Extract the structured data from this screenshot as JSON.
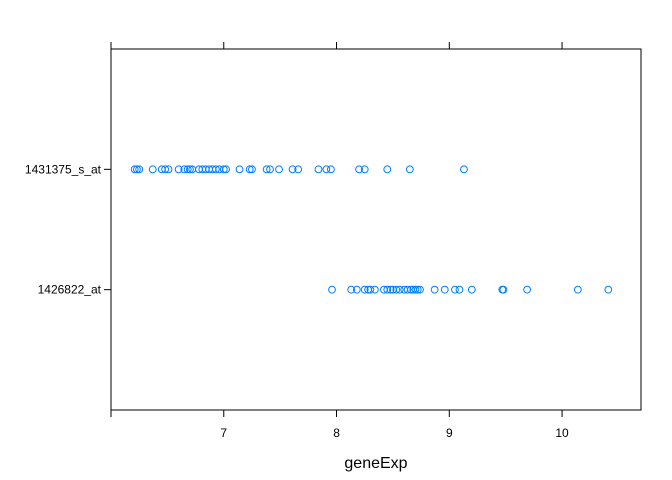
{
  "chart_data": {
    "type": "scatter",
    "title": "",
    "xlabel": "geneExp",
    "ylabel": "",
    "xlim": [
      6.0,
      10.7
    ],
    "x_ticks": [
      7,
      8,
      9,
      10
    ],
    "x_tick_labels": [
      "7",
      "8",
      "9",
      "10"
    ],
    "categories": [
      "1426822_at",
      "1431375_s_at"
    ],
    "grid": false,
    "marker_color": "#0080ff",
    "series": [
      {
        "category": "1431375_s_at",
        "values": [
          6.21,
          6.23,
          6.25,
          6.37,
          6.45,
          6.48,
          6.51,
          6.6,
          6.65,
          6.68,
          6.7,
          6.72,
          6.78,
          6.81,
          6.84,
          6.87,
          6.9,
          6.93,
          6.96,
          7.0,
          7.02,
          7.14,
          7.23,
          7.25,
          7.38,
          7.41,
          7.49,
          7.61,
          7.66,
          7.84,
          7.91,
          7.95,
          8.2,
          8.25,
          8.45,
          8.65,
          9.13
        ]
      },
      {
        "category": "1426822_at",
        "values": [
          7.96,
          8.13,
          8.18,
          8.25,
          8.28,
          8.3,
          8.34,
          8.42,
          8.45,
          8.48,
          8.5,
          8.53,
          8.56,
          8.6,
          8.63,
          8.66,
          8.68,
          8.7,
          8.72,
          8.74,
          8.87,
          8.96,
          9.05,
          9.09,
          9.2,
          9.47,
          9.48,
          9.69,
          10.14,
          10.41
        ]
      }
    ]
  }
}
